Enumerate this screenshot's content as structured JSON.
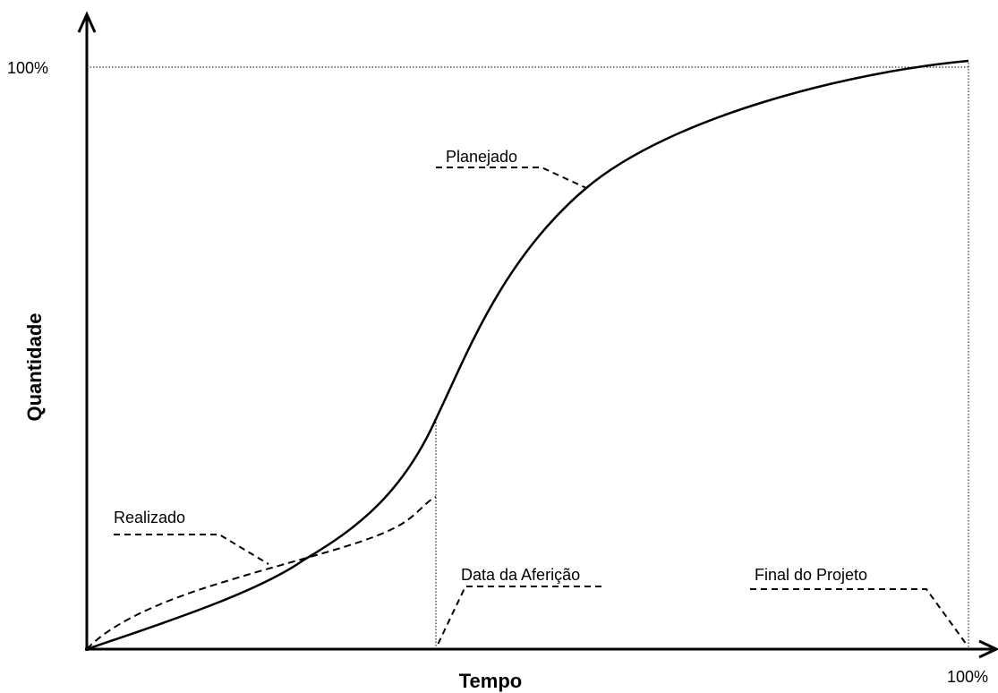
{
  "axes": {
    "y_label": "Quantidade",
    "x_label": "Tempo",
    "y_max_label": "100%",
    "x_max_label": "100%"
  },
  "annotations": {
    "planned": "Planejado",
    "actual": "Realizado",
    "measurement_date": "Data da Aferição",
    "project_end": "Final do Projeto"
  }
}
